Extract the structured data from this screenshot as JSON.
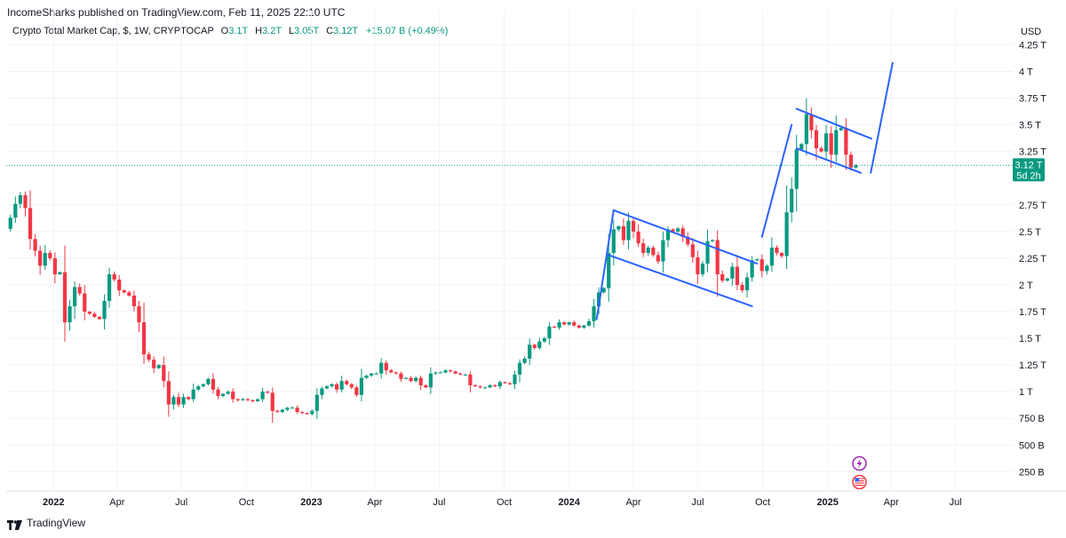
{
  "publisher": {
    "author": "IncomeSharks",
    "text": "IncomeSharks published on TradingView.com, Feb 11, 2025 22:10 UTC"
  },
  "legend": {
    "symbol": "Crypto Total Market Cap, $, 1W, CRYPTOCAP",
    "open_label": "O",
    "open": "3.1T",
    "high_label": "H",
    "high": "3.2T",
    "low_label": "L",
    "low": "3.05T",
    "close_label": "C",
    "close": "3.12T",
    "change": "+15.07 B (+0.49%)"
  },
  "price_axis": {
    "currency": "USD"
  },
  "last_price": {
    "value": "3.12 T",
    "countdown": "5d 2h"
  },
  "footer": {
    "brand": "TradingView"
  },
  "colors": {
    "up": "#089981",
    "down": "#F23645",
    "drawing": "#2962FF",
    "grid": "#F0F3FA",
    "price_line": "#089981"
  },
  "icons": [
    "lightning-icon",
    "us-flag-icon",
    "tradingview-logo-icon"
  ],
  "chart_data": {
    "type": "candlestick",
    "title": "Crypto Total Market Cap, $, 1W, CRYPTOCAP",
    "xlabel": "",
    "ylabel": "",
    "ylim": [
      0.07,
      4.32
    ],
    "y_unit": "T (trillion USD)",
    "y_ticks": [
      {
        "v": 4.25,
        "label": "4.25 T"
      },
      {
        "v": 4.0,
        "label": "4 T"
      },
      {
        "v": 3.75,
        "label": "3.75 T"
      },
      {
        "v": 3.5,
        "label": "3.5 T"
      },
      {
        "v": 3.25,
        "label": "3.25 T"
      },
      {
        "v": 2.75,
        "label": "2.75 T"
      },
      {
        "v": 2.5,
        "label": "2.5 T"
      },
      {
        "v": 2.25,
        "label": "2.25 T"
      },
      {
        "v": 2.0,
        "label": "2 T"
      },
      {
        "v": 1.75,
        "label": "1.75 T"
      },
      {
        "v": 1.5,
        "label": "1.5 T"
      },
      {
        "v": 1.25,
        "label": "1.25 T"
      },
      {
        "v": 1.0,
        "label": "1 T"
      },
      {
        "v": 0.75,
        "label": "750 B"
      },
      {
        "v": 0.5,
        "label": "500 B"
      },
      {
        "v": 0.25,
        "label": "250 B"
      }
    ],
    "x_ticks": [
      {
        "t": "2022-01-01",
        "label": "2022",
        "bold": true
      },
      {
        "t": "2022-04-01",
        "label": "Apr"
      },
      {
        "t": "2022-07-01",
        "label": "Jul"
      },
      {
        "t": "2022-10-01",
        "label": "Oct"
      },
      {
        "t": "2023-01-01",
        "label": "2023",
        "bold": true
      },
      {
        "t": "2023-04-01",
        "label": "Apr"
      },
      {
        "t": "2023-07-01",
        "label": "Jul"
      },
      {
        "t": "2023-10-01",
        "label": "Oct"
      },
      {
        "t": "2024-01-01",
        "label": "2024",
        "bold": true
      },
      {
        "t": "2024-04-01",
        "label": "Apr"
      },
      {
        "t": "2024-07-01",
        "label": "Jul"
      },
      {
        "t": "2024-10-01",
        "label": "Oct"
      },
      {
        "t": "2025-01-01",
        "label": "2025",
        "bold": true
      },
      {
        "t": "2025-04-01",
        "label": "Apr"
      },
      {
        "t": "2025-07-01",
        "label": "Jul"
      }
    ],
    "xlim": [
      "2021-10-26",
      "2025-09-20"
    ],
    "last_close": 3.12,
    "closes": [
      {
        "t": "2021-11-01",
        "c": 2.63
      },
      {
        "t": "2021-11-08",
        "c": 2.76
      },
      {
        "t": "2021-11-15",
        "c": 2.84
      },
      {
        "t": "2021-11-22",
        "c": 2.72
      },
      {
        "t": "2021-11-29",
        "c": 2.43
      },
      {
        "t": "2021-12-06",
        "c": 2.32
      },
      {
        "t": "2021-12-13",
        "c": 2.18
      },
      {
        "t": "2021-12-20",
        "c": 2.3
      },
      {
        "t": "2021-12-27",
        "c": 2.25
      },
      {
        "t": "2022-01-03",
        "c": 2.1
      },
      {
        "t": "2022-01-10",
        "c": 2.12
      },
      {
        "t": "2022-01-17",
        "c": 1.65
      },
      {
        "t": "2022-01-24",
        "c": 1.8
      },
      {
        "t": "2022-01-31",
        "c": 1.98
      },
      {
        "t": "2022-02-07",
        "c": 1.92
      },
      {
        "t": "2022-02-14",
        "c": 1.75
      },
      {
        "t": "2022-02-21",
        "c": 1.73
      },
      {
        "t": "2022-02-28",
        "c": 1.7
      },
      {
        "t": "2022-03-07",
        "c": 1.68
      },
      {
        "t": "2022-03-14",
        "c": 1.85
      },
      {
        "t": "2022-03-21",
        "c": 2.1
      },
      {
        "t": "2022-03-28",
        "c": 2.05
      },
      {
        "t": "2022-04-04",
        "c": 1.95
      },
      {
        "t": "2022-04-11",
        "c": 1.93
      },
      {
        "t": "2022-04-18",
        "c": 1.9
      },
      {
        "t": "2022-04-25",
        "c": 1.8
      },
      {
        "t": "2022-05-02",
        "c": 1.65
      },
      {
        "t": "2022-05-09",
        "c": 1.35
      },
      {
        "t": "2022-05-16",
        "c": 1.3
      },
      {
        "t": "2022-05-23",
        "c": 1.22
      },
      {
        "t": "2022-05-30",
        "c": 1.25
      },
      {
        "t": "2022-06-06",
        "c": 1.1
      },
      {
        "t": "2022-06-13",
        "c": 0.88
      },
      {
        "t": "2022-06-20",
        "c": 0.95
      },
      {
        "t": "2022-06-27",
        "c": 0.88
      },
      {
        "t": "2022-07-04",
        "c": 0.95
      },
      {
        "t": "2022-07-11",
        "c": 0.93
      },
      {
        "t": "2022-07-18",
        "c": 1.02
      },
      {
        "t": "2022-07-25",
        "c": 1.05
      },
      {
        "t": "2022-08-01",
        "c": 1.07
      },
      {
        "t": "2022-08-08",
        "c": 1.12
      },
      {
        "t": "2022-08-15",
        "c": 1.02
      },
      {
        "t": "2022-08-22",
        "c": 0.96
      },
      {
        "t": "2022-08-29",
        "c": 0.98
      },
      {
        "t": "2022-09-05",
        "c": 1.0
      },
      {
        "t": "2022-09-12",
        "c": 0.93
      },
      {
        "t": "2022-09-19",
        "c": 0.92
      },
      {
        "t": "2022-09-26",
        "c": 0.93
      },
      {
        "t": "2022-10-03",
        "c": 0.92
      },
      {
        "t": "2022-10-10",
        "c": 0.91
      },
      {
        "t": "2022-10-17",
        "c": 0.93
      },
      {
        "t": "2022-10-24",
        "c": 1.0
      },
      {
        "t": "2022-10-31",
        "c": 0.99
      },
      {
        "t": "2022-11-07",
        "c": 0.82
      },
      {
        "t": "2022-11-14",
        "c": 0.81
      },
      {
        "t": "2022-11-21",
        "c": 0.83
      },
      {
        "t": "2022-11-28",
        "c": 0.85
      },
      {
        "t": "2022-12-05",
        "c": 0.85
      },
      {
        "t": "2022-12-12",
        "c": 0.81
      },
      {
        "t": "2022-12-19",
        "c": 0.8
      },
      {
        "t": "2022-12-26",
        "c": 0.79
      },
      {
        "t": "2023-01-02",
        "c": 0.82
      },
      {
        "t": "2023-01-09",
        "c": 0.97
      },
      {
        "t": "2023-01-16",
        "c": 1.03
      },
      {
        "t": "2023-01-23",
        "c": 1.05
      },
      {
        "t": "2023-01-30",
        "c": 1.07
      },
      {
        "t": "2023-02-06",
        "c": 1.02
      },
      {
        "t": "2023-02-13",
        "c": 1.1
      },
      {
        "t": "2023-02-20",
        "c": 1.07
      },
      {
        "t": "2023-02-27",
        "c": 1.04
      },
      {
        "t": "2023-03-06",
        "c": 0.97
      },
      {
        "t": "2023-03-13",
        "c": 1.13
      },
      {
        "t": "2023-03-20",
        "c": 1.15
      },
      {
        "t": "2023-03-27",
        "c": 1.17
      },
      {
        "t": "2023-04-03",
        "c": 1.17
      },
      {
        "t": "2023-04-10",
        "c": 1.27
      },
      {
        "t": "2023-04-17",
        "c": 1.2
      },
      {
        "t": "2023-04-24",
        "c": 1.18
      },
      {
        "t": "2023-05-01",
        "c": 1.17
      },
      {
        "t": "2023-05-08",
        "c": 1.12
      },
      {
        "t": "2023-05-15",
        "c": 1.13
      },
      {
        "t": "2023-05-22",
        "c": 1.1
      },
      {
        "t": "2023-05-29",
        "c": 1.13
      },
      {
        "t": "2023-06-05",
        "c": 1.06
      },
      {
        "t": "2023-06-12",
        "c": 1.04
      },
      {
        "t": "2023-06-19",
        "c": 1.17
      },
      {
        "t": "2023-06-26",
        "c": 1.18
      },
      {
        "t": "2023-07-03",
        "c": 1.18
      },
      {
        "t": "2023-07-10",
        "c": 1.2
      },
      {
        "t": "2023-07-17",
        "c": 1.19
      },
      {
        "t": "2023-07-24",
        "c": 1.17
      },
      {
        "t": "2023-07-31",
        "c": 1.16
      },
      {
        "t": "2023-08-07",
        "c": 1.16
      },
      {
        "t": "2023-08-14",
        "c": 1.06
      },
      {
        "t": "2023-08-21",
        "c": 1.05
      },
      {
        "t": "2023-08-28",
        "c": 1.04
      },
      {
        "t": "2023-09-04",
        "c": 1.04
      },
      {
        "t": "2023-09-11",
        "c": 1.06
      },
      {
        "t": "2023-09-18",
        "c": 1.05
      },
      {
        "t": "2023-09-25",
        "c": 1.09
      },
      {
        "t": "2023-10-02",
        "c": 1.08
      },
      {
        "t": "2023-10-09",
        "c": 1.07
      },
      {
        "t": "2023-10-16",
        "c": 1.16
      },
      {
        "t": "2023-10-23",
        "c": 1.27
      },
      {
        "t": "2023-10-30",
        "c": 1.31
      },
      {
        "t": "2023-11-06",
        "c": 1.44
      },
      {
        "t": "2023-11-13",
        "c": 1.41
      },
      {
        "t": "2023-11-20",
        "c": 1.47
      },
      {
        "t": "2023-11-27",
        "c": 1.5
      },
      {
        "t": "2023-12-04",
        "c": 1.61
      },
      {
        "t": "2023-12-11",
        "c": 1.6
      },
      {
        "t": "2023-12-18",
        "c": 1.65
      },
      {
        "t": "2023-12-25",
        "c": 1.63
      },
      {
        "t": "2024-01-01",
        "c": 1.65
      },
      {
        "t": "2024-01-08",
        "c": 1.62
      },
      {
        "t": "2024-01-15",
        "c": 1.6
      },
      {
        "t": "2024-01-22",
        "c": 1.62
      },
      {
        "t": "2024-01-29",
        "c": 1.66
      },
      {
        "t": "2024-02-05",
        "c": 1.8
      },
      {
        "t": "2024-02-12",
        "c": 1.93
      },
      {
        "t": "2024-02-19",
        "c": 1.97
      },
      {
        "t": "2024-02-26",
        "c": 2.3
      },
      {
        "t": "2024-03-04",
        "c": 2.52
      },
      {
        "t": "2024-03-11",
        "c": 2.55
      },
      {
        "t": "2024-03-18",
        "c": 2.42
      },
      {
        "t": "2024-03-25",
        "c": 2.6
      },
      {
        "t": "2024-04-01",
        "c": 2.5
      },
      {
        "t": "2024-04-08",
        "c": 2.39
      },
      {
        "t": "2024-04-15",
        "c": 2.3
      },
      {
        "t": "2024-04-22",
        "c": 2.35
      },
      {
        "t": "2024-04-29",
        "c": 2.28
      },
      {
        "t": "2024-05-06",
        "c": 2.22
      },
      {
        "t": "2024-05-13",
        "c": 2.42
      },
      {
        "t": "2024-05-20",
        "c": 2.52
      },
      {
        "t": "2024-05-27",
        "c": 2.5
      },
      {
        "t": "2024-06-03",
        "c": 2.53
      },
      {
        "t": "2024-06-10",
        "c": 2.45
      },
      {
        "t": "2024-06-17",
        "c": 2.38
      },
      {
        "t": "2024-06-24",
        "c": 2.26
      },
      {
        "t": "2024-07-01",
        "c": 2.1
      },
      {
        "t": "2024-07-08",
        "c": 2.2
      },
      {
        "t": "2024-07-15",
        "c": 2.41
      },
      {
        "t": "2024-07-22",
        "c": 2.42
      },
      {
        "t": "2024-07-29",
        "c": 2.1
      },
      {
        "t": "2024-08-05",
        "c": 2.04
      },
      {
        "t": "2024-08-12",
        "c": 2.06
      },
      {
        "t": "2024-08-19",
        "c": 2.17
      },
      {
        "t": "2024-08-26",
        "c": 2.0
      },
      {
        "t": "2024-09-02",
        "c": 1.95
      },
      {
        "t": "2024-09-09",
        "c": 2.07
      },
      {
        "t": "2024-09-16",
        "c": 2.23
      },
      {
        "t": "2024-09-23",
        "c": 2.24
      },
      {
        "t": "2024-09-30",
        "c": 2.13
      },
      {
        "t": "2024-10-07",
        "c": 2.18
      },
      {
        "t": "2024-10-14",
        "c": 2.35
      },
      {
        "t": "2024-10-21",
        "c": 2.3
      },
      {
        "t": "2024-10-28",
        "c": 2.27
      },
      {
        "t": "2024-11-04",
        "c": 2.68
      },
      {
        "t": "2024-11-11",
        "c": 2.9
      },
      {
        "t": "2024-11-18",
        "c": 3.27
      },
      {
        "t": "2024-11-25",
        "c": 3.32
      },
      {
        "t": "2024-12-02",
        "c": 3.6
      },
      {
        "t": "2024-12-09",
        "c": 3.45
      },
      {
        "t": "2024-12-16",
        "c": 3.28
      },
      {
        "t": "2024-12-23",
        "c": 3.25
      },
      {
        "t": "2024-12-30",
        "c": 3.42
      },
      {
        "t": "2025-01-06",
        "c": 3.22
      },
      {
        "t": "2025-01-13",
        "c": 3.45
      },
      {
        "t": "2025-01-20",
        "c": 3.47
      },
      {
        "t": "2025-01-27",
        "c": 3.22
      },
      {
        "t": "2025-02-03",
        "c": 3.1
      },
      {
        "t": "2025-02-10",
        "c": 3.12
      }
    ],
    "drawings": [
      {
        "from": [
          "2024-03-04",
          2.7
        ],
        "to": [
          "2024-09-23",
          2.2
        ]
      },
      {
        "from": [
          "2024-02-26",
          2.28
        ],
        "to": [
          "2024-09-16",
          1.8
        ]
      },
      {
        "from": [
          "2024-02-09",
          1.68
        ],
        "to": [
          "2024-03-04",
          2.7
        ]
      },
      {
        "from": [
          "2024-09-30",
          2.45
        ],
        "to": [
          "2024-11-11",
          3.5
        ]
      },
      {
        "from": [
          "2024-11-18",
          3.65
        ],
        "to": [
          "2025-03-04",
          3.37
        ]
      },
      {
        "from": [
          "2024-11-18",
          3.28
        ],
        "to": [
          "2025-02-17",
          3.05
        ]
      },
      {
        "from": [
          "2025-03-03",
          3.05
        ],
        "to": [
          "2025-04-03",
          4.08
        ]
      }
    ]
  }
}
